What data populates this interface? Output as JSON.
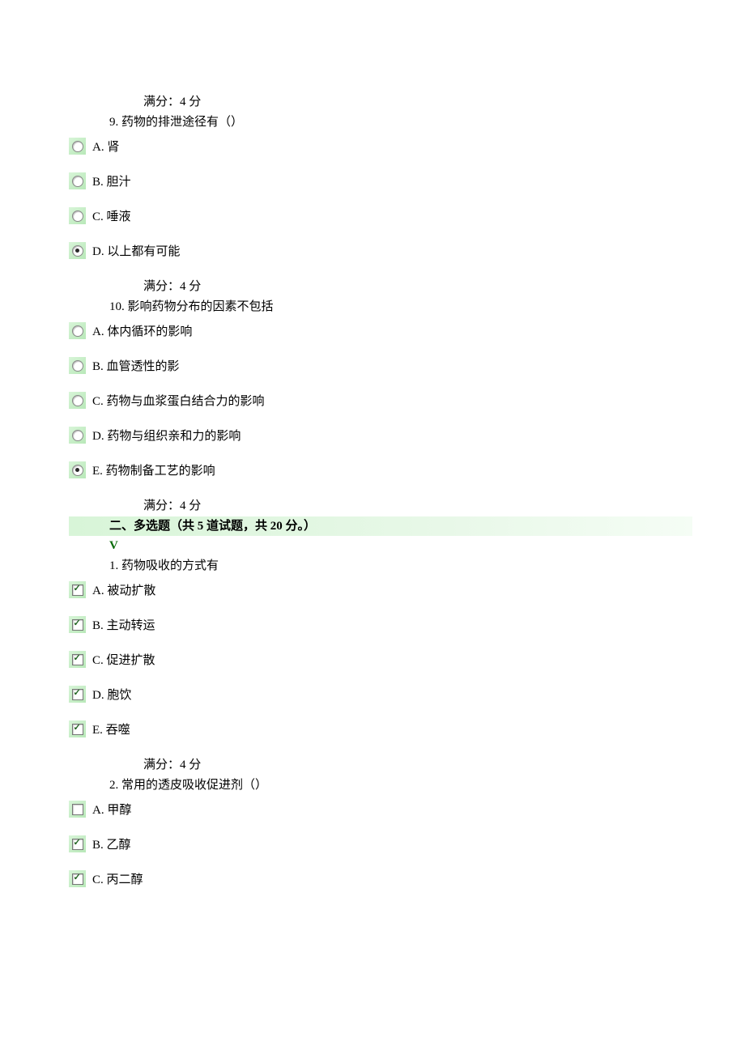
{
  "score_label": "满分：4  分",
  "q9": {
    "number": "9.",
    "text": "药物的排泄途径有（）",
    "options": [
      {
        "letter": "A.",
        "text": "肾",
        "selected": false
      },
      {
        "letter": "B.",
        "text": "胆汁",
        "selected": false
      },
      {
        "letter": "C.",
        "text": "唾液",
        "selected": false
      },
      {
        "letter": "D.",
        "text": "以上都有可能",
        "selected": true
      }
    ]
  },
  "q10": {
    "number": "10.",
    "text": "影响药物分布的因素不包括",
    "options": [
      {
        "letter": "A.",
        "text": "体内循环的影响",
        "selected": false
      },
      {
        "letter": "B.",
        "text": "血管透性的影",
        "selected": false
      },
      {
        "letter": "C.",
        "text": "药物与血浆蛋白结合力的影响",
        "selected": false
      },
      {
        "letter": "D.",
        "text": "药物与组织亲和力的影响",
        "selected": false
      },
      {
        "letter": "E.",
        "text": "药物制备工艺的影响",
        "selected": true
      }
    ]
  },
  "section2": {
    "title_a": "二、多选题（共 ",
    "title_b": "5",
    "title_c": " 道试题，共 ",
    "title_d": "20",
    "title_e": " 分。）",
    "v": "V"
  },
  "mq1": {
    "number": "1.",
    "text": "药物吸收的方式有",
    "options": [
      {
        "letter": "A.",
        "text": "被动扩散",
        "checked": true
      },
      {
        "letter": "B.",
        "text": "主动转运",
        "checked": true
      },
      {
        "letter": "C.",
        "text": "促进扩散",
        "checked": true
      },
      {
        "letter": "D.",
        "text": "胞饮",
        "checked": true
      },
      {
        "letter": "E.",
        "text": "吞噬",
        "checked": true
      }
    ]
  },
  "mq2": {
    "number": "2.",
    "text": "常用的透皮吸收促进剂（）",
    "options": [
      {
        "letter": "A.",
        "text": "甲醇",
        "checked": false
      },
      {
        "letter": "B.",
        "text": "乙醇",
        "checked": true
      },
      {
        "letter": "C.",
        "text": "丙二醇",
        "checked": true
      }
    ]
  }
}
